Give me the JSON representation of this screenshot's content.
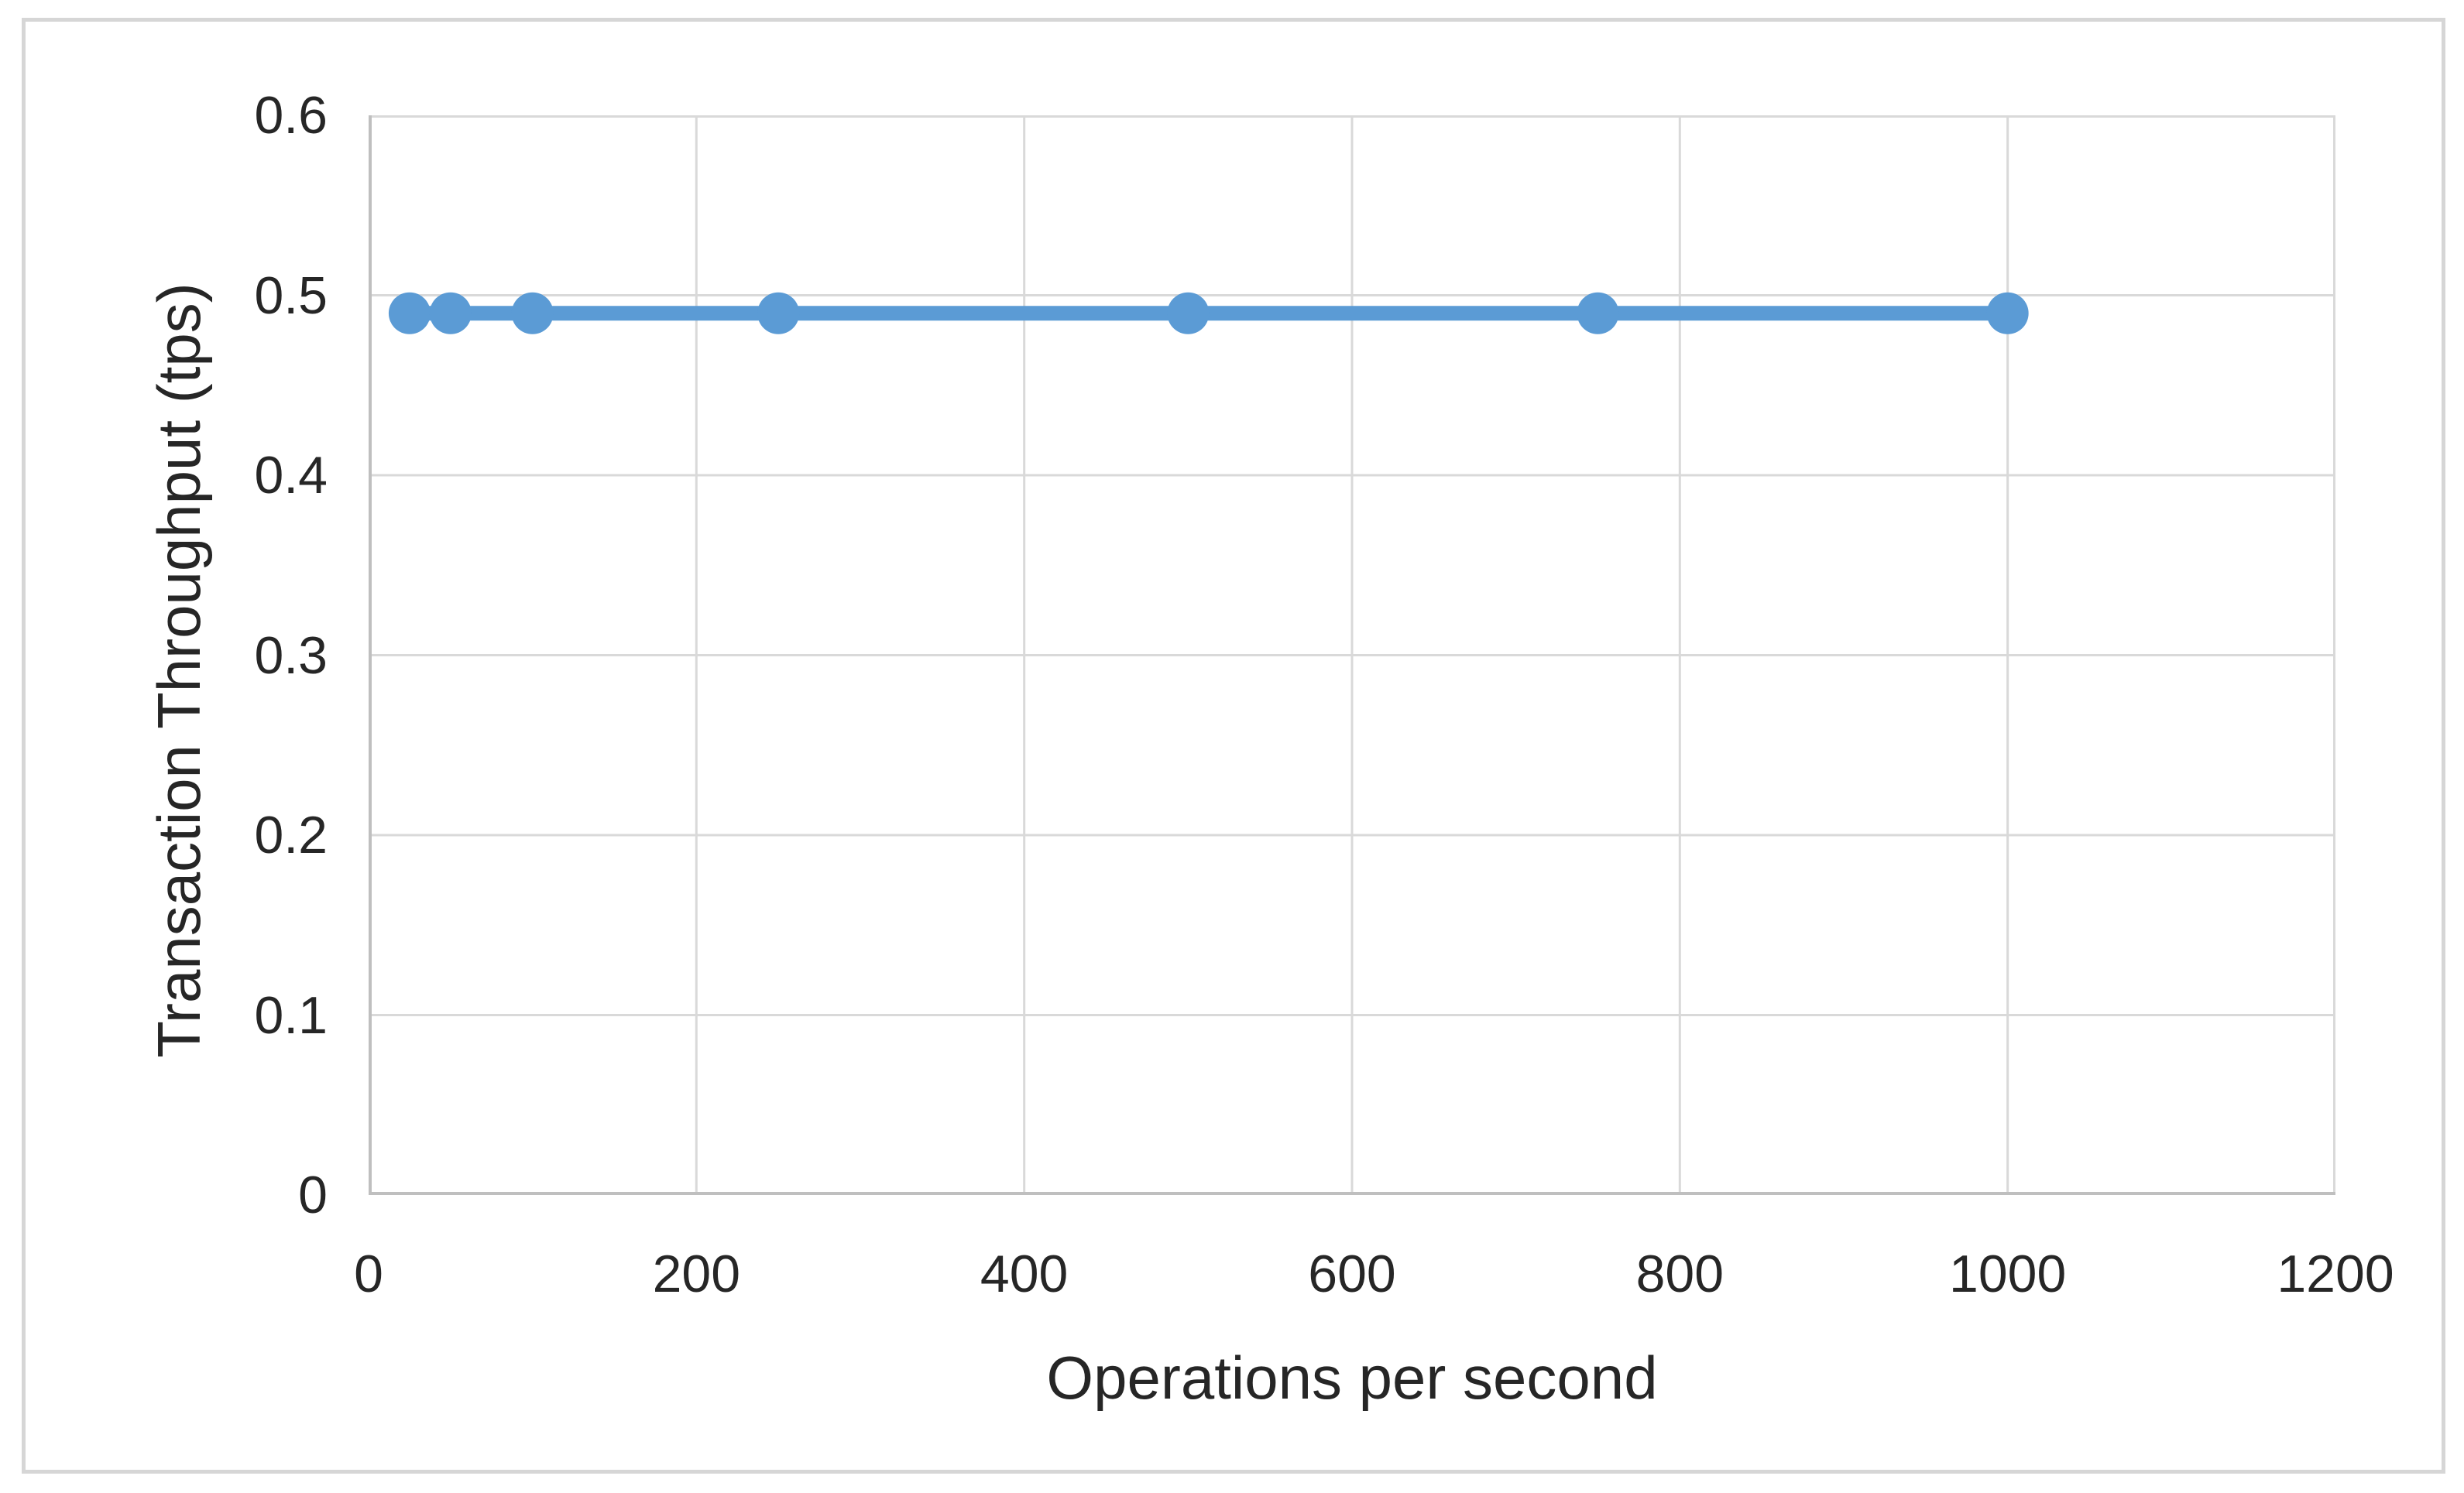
{
  "figure": {
    "background_color": "#ffffff",
    "border_color": "#d6d6d6"
  },
  "chart_data": {
    "type": "line",
    "title": "",
    "xlabel": "Operations per second",
    "ylabel": "Transaction Throughput (tps)",
    "x": [
      25,
      50,
      100,
      250,
      500,
      750,
      1000
    ],
    "y": [
      0.49,
      0.49,
      0.49,
      0.49,
      0.49,
      0.49,
      0.49
    ],
    "xlim": [
      0,
      1200
    ],
    "ylim": [
      0,
      0.6
    ],
    "x_tick_values": [
      0,
      200,
      400,
      600,
      800,
      1000,
      1200
    ],
    "x_tick_labels": [
      "0",
      "200",
      "400",
      "600",
      "800",
      "1000",
      "1200"
    ],
    "y_tick_values": [
      0,
      0.1,
      0.2,
      0.3,
      0.4,
      0.5,
      0.6
    ],
    "y_tick_labels": [
      "0",
      "0.1",
      "0.2",
      "0.3",
      "0.4",
      "0.5",
      "0.6"
    ],
    "grid": true,
    "legend": false,
    "line_color": "#5b9bd5",
    "marker_color": "#5b9bd5",
    "marker_style": "circle",
    "gridline_color": "#d9d9d9",
    "axis_line_color": "#bfbfbf",
    "text_color": "#262626"
  }
}
